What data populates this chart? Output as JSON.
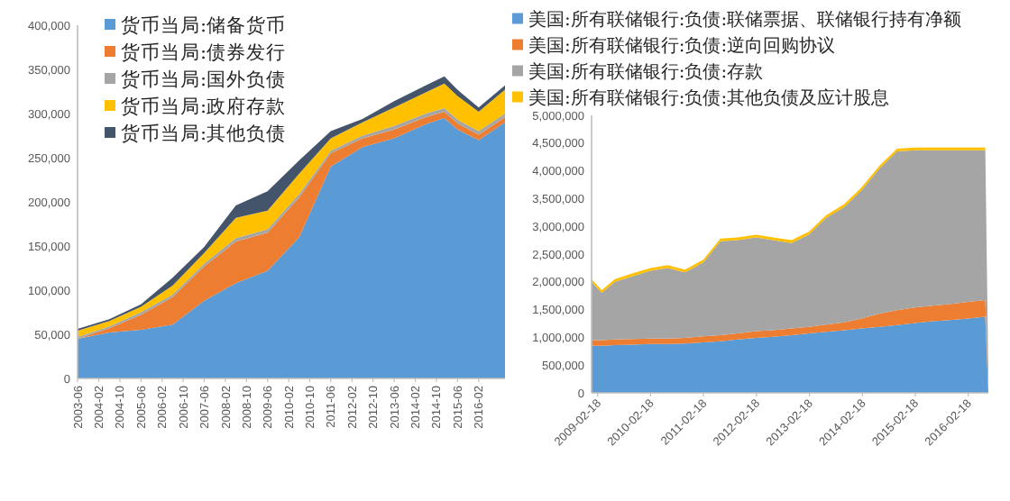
{
  "chart_data": [
    {
      "type": "area",
      "stacked": true,
      "legend": "top left",
      "x": [
        "2003-06",
        "2004-06",
        "2005-06",
        "2006-06",
        "2007-06",
        "2008-06",
        "2009-06",
        "2010-06",
        "2011-06",
        "2012-06",
        "2013-06",
        "2014-06",
        "2015-01",
        "2015-06",
        "2016-02",
        "2016-12"
      ],
      "xlim": [
        "2003-06",
        "2016-12"
      ],
      "xticks": [
        "2003-06",
        "2004-02",
        "2004-10",
        "2005-06",
        "2006-02",
        "2006-10",
        "2007-06",
        "2008-02",
        "2008-10",
        "2009-06",
        "2010-02",
        "2010-10",
        "2011-06",
        "2012-02",
        "2012-10",
        "2013-06",
        "2014-02",
        "2014-10",
        "2015-06",
        "2016-02"
      ],
      "ylim": [
        0,
        400000
      ],
      "yticks": [
        {
          "value": 0,
          "label": "0"
        },
        {
          "value": 50000,
          "label": "50,000"
        },
        {
          "value": 100000,
          "label": "100,000"
        },
        {
          "value": 150000,
          "label": "150,000"
        },
        {
          "value": 200000,
          "label": "200,000"
        },
        {
          "value": 250000,
          "label": "250,000"
        },
        {
          "value": 300000,
          "label": "300,000"
        },
        {
          "value": 350000,
          "label": "350,000"
        },
        {
          "value": 400000,
          "label": "400,000"
        }
      ],
      "series": [
        {
          "name": "货币当局:储备货币",
          "color": "#5b9bd5",
          "values": [
            45000,
            52000,
            55000,
            61000,
            88000,
            108000,
            122000,
            160000,
            240000,
            262000,
            272000,
            288000,
            295000,
            282000,
            270000,
            290000
          ]
        },
        {
          "name": "货币当局:债券发行",
          "color": "#ed7d31",
          "values": [
            0,
            5000,
            17000,
            31000,
            39000,
            47000,
            43000,
            45000,
            15000,
            10000,
            10000,
            8000,
            7000,
            7000,
            6000,
            6000
          ]
        },
        {
          "name": "货币当局:国外负债",
          "color": "#a5a5a5",
          "values": [
            2000,
            2000,
            3000,
            3000,
            3000,
            4000,
            4000,
            4000,
            3000,
            3000,
            4000,
            4000,
            4000,
            4000,
            4000,
            4000
          ]
        },
        {
          "name": "货币当局:政府存款",
          "color": "#ffc000",
          "values": [
            7000,
            6000,
            6000,
            10000,
            12000,
            23000,
            21000,
            23000,
            14000,
            15000,
            21000,
            24000,
            28000,
            27000,
            22000,
            27000
          ]
        },
        {
          "name": "货币当局:其他负债",
          "color": "#44546a",
          "values": [
            2000,
            2000,
            3000,
            9000,
            7000,
            14000,
            22000,
            15000,
            8000,
            4000,
            7000,
            8000,
            8000,
            7000,
            5000,
            5000
          ]
        }
      ]
    },
    {
      "type": "area",
      "stacked": true,
      "legend": "top left",
      "x": [
        "2009-01-07",
        "2009-03-18",
        "2009-06-17",
        "2009-10-14",
        "2010-02-17",
        "2010-06-16",
        "2010-10-13",
        "2011-02-16",
        "2011-06-15",
        "2011-10-12",
        "2012-02-15",
        "2012-06-13",
        "2012-10-17",
        "2013-02-13",
        "2013-06-12",
        "2013-10-16",
        "2014-02-12",
        "2014-06-18",
        "2014-10-15",
        "2015-02-18",
        "2015-06-17",
        "2015-10-14",
        "2016-02-17",
        "2016-06-15",
        "2016-07-06"
      ],
      "xlim": [
        "2009-01-07",
        "2016-07-06"
      ],
      "xticks": [
        "2009-02-18",
        "2010-02-18",
        "2011-02-18",
        "2012-02-18",
        "2013-02-18",
        "2014-02-18",
        "2015-02-18",
        "2016-02-18"
      ],
      "ylim": [
        0,
        5000000
      ],
      "yticks": [
        {
          "value": 0,
          "label": "0"
        },
        {
          "value": 500000,
          "label": "500,000"
        },
        {
          "value": 1000000,
          "label": "1,000,000"
        },
        {
          "value": 1500000,
          "label": "1,500,000"
        },
        {
          "value": 2000000,
          "label": "2,000,000"
        },
        {
          "value": 2500000,
          "label": "2,500,000"
        },
        {
          "value": 3000000,
          "label": "3,000,000"
        },
        {
          "value": 3500000,
          "label": "3,500,000"
        },
        {
          "value": 4000000,
          "label": "4,000,000"
        },
        {
          "value": 4500000,
          "label": "4,500,000"
        },
        {
          "value": 5000000,
          "label": "5,000,000"
        }
      ],
      "series": [
        {
          "name": "美国:所有联储银行:负债:联储票据、联储银行持有净额",
          "color": "#5b9bd5",
          "values": [
            850000,
            850000,
            860000,
            870000,
            880000,
            880000,
            890000,
            910000,
            930000,
            960000,
            990000,
            1010000,
            1040000,
            1070000,
            1100000,
            1130000,
            1160000,
            1190000,
            1220000,
            1260000,
            1290000,
            1310000,
            1340000,
            1370000,
            0
          ]
        },
        {
          "name": "美国:所有联储银行:负债:逆向回购协议",
          "color": "#ed7d31",
          "values": [
            100000,
            100000,
            100000,
            100000,
            100000,
            100000,
            100000,
            110000,
            110000,
            110000,
            120000,
            120000,
            120000,
            120000,
            130000,
            140000,
            180000,
            240000,
            270000,
            280000,
            280000,
            290000,
            300000,
            300000,
            0
          ]
        },
        {
          "name": "美国:所有联储银行:负债:存款",
          "color": "#a5a5a5",
          "values": [
            1050000,
            850000,
            1040000,
            1130000,
            1220000,
            1270000,
            1180000,
            1330000,
            1690000,
            1680000,
            1690000,
            1620000,
            1540000,
            1660000,
            1920000,
            2080000,
            2310000,
            2620000,
            2860000,
            2830000,
            2800000,
            2770000,
            2730000,
            2700000,
            300000
          ]
        },
        {
          "name": "美国:所有联储银行:负债:其他负债及应计股息",
          "color": "#ffc000",
          "values": [
            50000,
            50000,
            50000,
            50000,
            50000,
            50000,
            50000,
            50000,
            50000,
            50000,
            50000,
            50000,
            50000,
            50000,
            50000,
            50000,
            50000,
            50000,
            50000,
            50000,
            50000,
            50000,
            50000,
            50000,
            0
          ]
        }
      ]
    }
  ]
}
